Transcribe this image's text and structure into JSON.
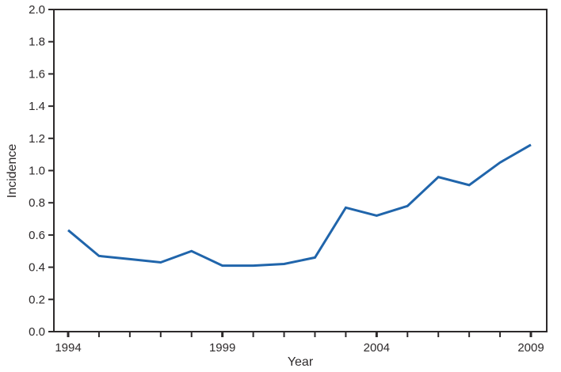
{
  "chart_data": {
    "type": "line",
    "title": "",
    "xlabel": "Year",
    "ylabel": "Incidence",
    "x": [
      1994,
      1995,
      1996,
      1997,
      1998,
      1999,
      2000,
      2001,
      2002,
      2003,
      2004,
      2005,
      2006,
      2007,
      2008,
      2009
    ],
    "values": [
      0.63,
      0.47,
      0.45,
      0.43,
      0.5,
      0.41,
      0.41,
      0.42,
      0.46,
      0.77,
      0.72,
      0.78,
      0.96,
      0.91,
      1.05,
      1.16
    ],
    "ylim": [
      0.0,
      2.0
    ],
    "y_tick_step": 0.2,
    "y_tick_labels": [
      "0.0",
      "0.2",
      "0.4",
      "0.6",
      "0.8",
      "1.0",
      "1.2",
      "1.4",
      "1.6",
      "1.8",
      "2.0"
    ],
    "x_tick_labels": [
      1994,
      1999,
      2004,
      2009
    ],
    "grid": false,
    "legend": "none",
    "line_color": "#2065ab",
    "axis_color": "#2d2a2b",
    "background": "#ffffff"
  }
}
